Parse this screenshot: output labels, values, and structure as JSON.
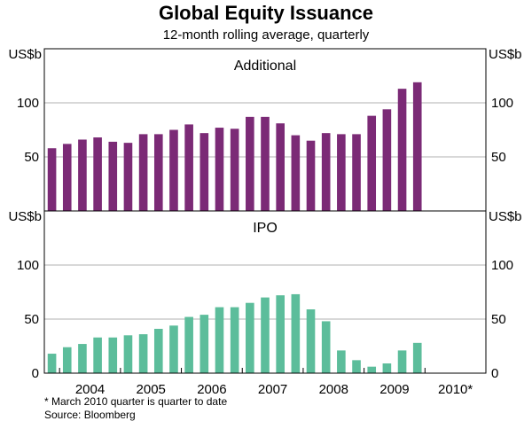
{
  "chart_data": {
    "type": "bar",
    "title": "Global Equity Issuance",
    "subtitle": "12-month rolling average, quarterly",
    "unit": "US$b",
    "ylim": [
      0,
      150
    ],
    "yticks": [
      0,
      50,
      100
    ],
    "year_labels": [
      "2004",
      "2005",
      "2006",
      "2007",
      "2008",
      "2009",
      "2010*"
    ],
    "quarters_per_year": 4,
    "first_quarter": "2003-Q4",
    "panels": [
      {
        "name": "Additional",
        "color": "#7b2a76",
        "values": [
          58,
          62,
          66,
          68,
          64,
          63,
          71,
          71,
          75,
          80,
          72,
          77,
          76,
          87,
          87,
          81,
          70,
          65,
          72,
          71,
          71,
          88,
          94,
          113,
          119
        ]
      },
      {
        "name": "IPO",
        "color": "#5cbd9b",
        "values": [
          18,
          24,
          27,
          33,
          33,
          35,
          36,
          41,
          44,
          52,
          54,
          61,
          61,
          65,
          70,
          72,
          73,
          59,
          48,
          21,
          12,
          6,
          9,
          21,
          28
        ]
      }
    ]
  },
  "footnotes": {
    "note": "*   March 2010 quarter is quarter to date",
    "source": "Source: Bloomberg"
  }
}
